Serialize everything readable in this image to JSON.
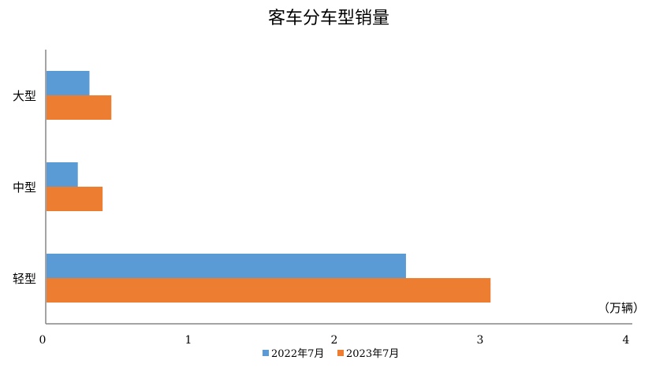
{
  "chart_data": {
    "type": "bar",
    "orientation": "horizontal",
    "title": "客车分车型销量",
    "unit_label": "（万辆）",
    "categories": [
      "大型",
      "中型",
      "轻型"
    ],
    "series": [
      {
        "name": "2022年7月",
        "color": "#5B9BD5",
        "values": [
          0.3,
          0.22,
          2.47
        ]
      },
      {
        "name": "2023年7月",
        "color": "#ED7D31",
        "values": [
          0.45,
          0.39,
          3.05
        ]
      }
    ],
    "xlim": [
      0,
      4
    ],
    "xticks": [
      "0",
      "1",
      "2",
      "3",
      "4"
    ],
    "grid": false,
    "legend_position": "bottom"
  }
}
